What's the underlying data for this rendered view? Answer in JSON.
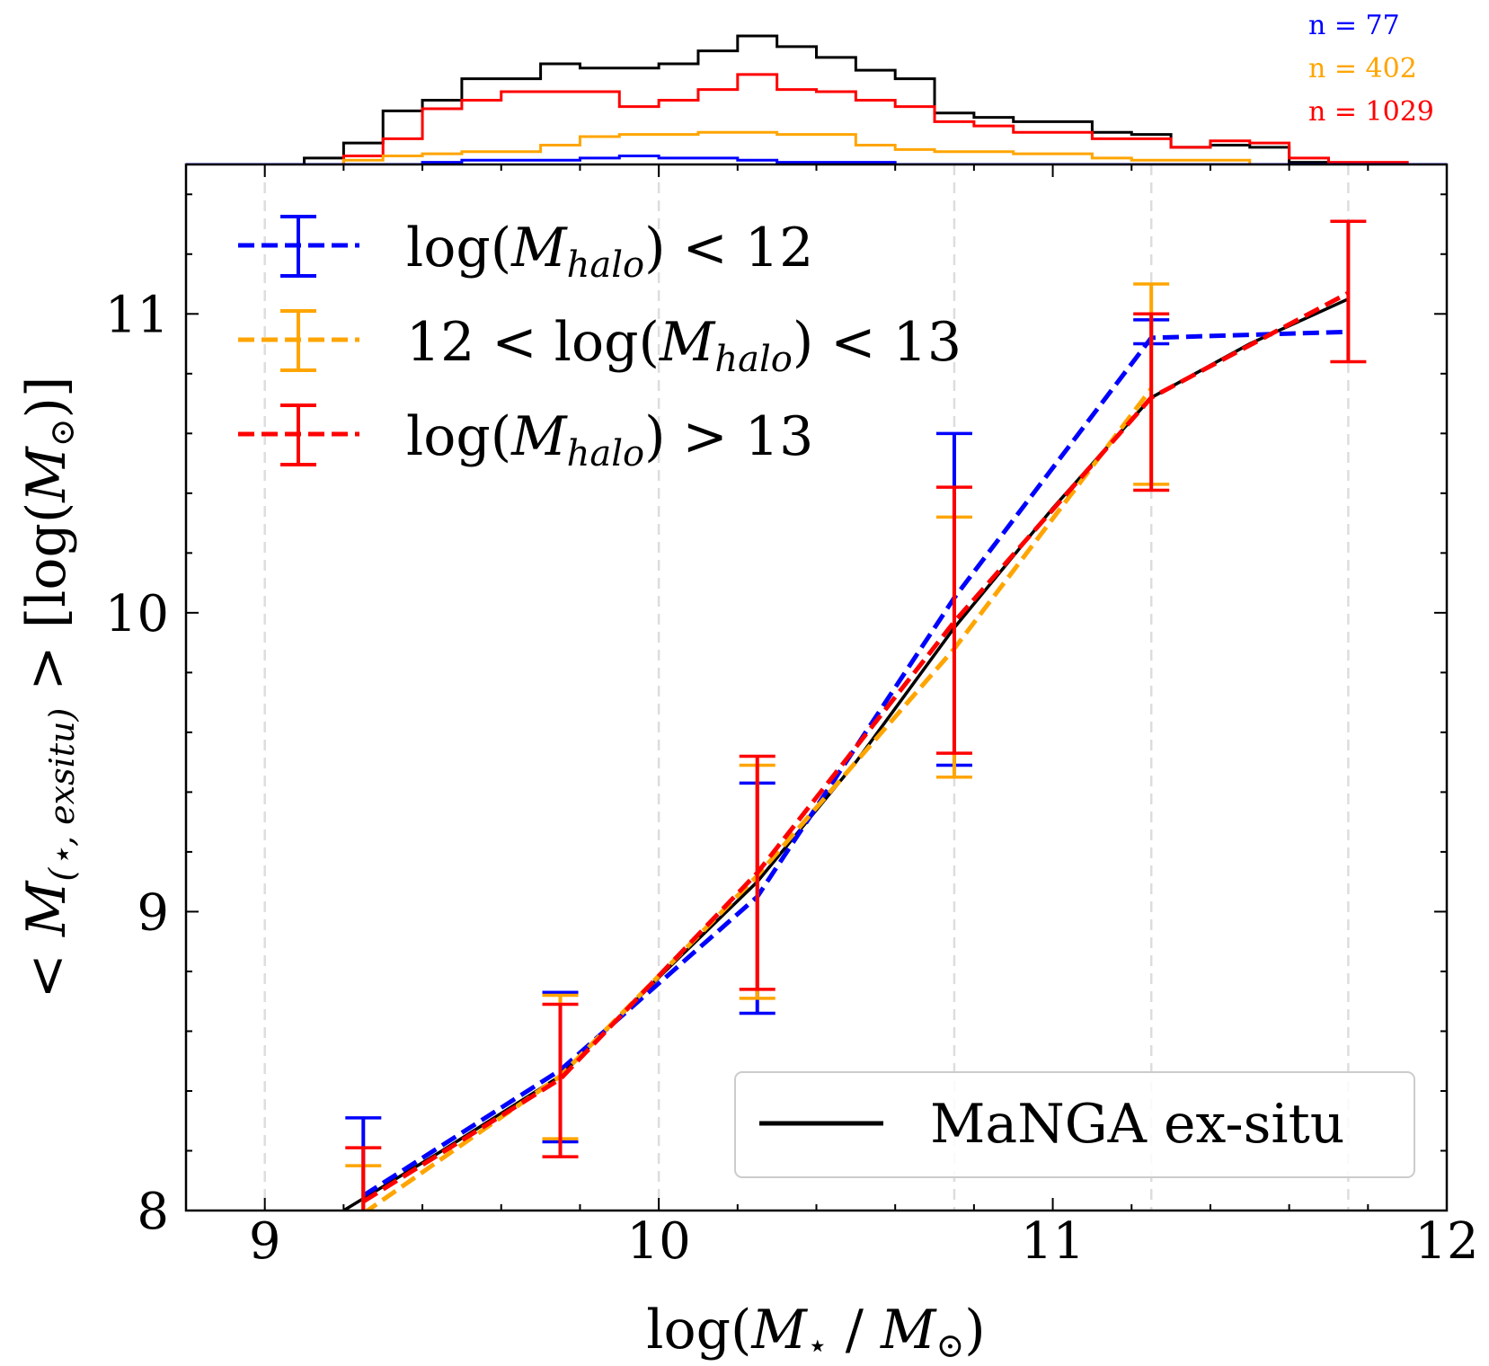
{
  "chart_data": {
    "type": "line",
    "xlabel_parts": {
      "pre": "log(",
      "m1": "M",
      "m1sub": "⋆",
      "slash": " / ",
      "m2": "M",
      "m2sub": "⊙",
      "post": ")"
    },
    "ylabel_parts": {
      "pre": "< ",
      "m": "M",
      "msub": "(⋆, exsitu)",
      "mid": " > [log(",
      "m2": "M",
      "m2sub": "⊙",
      "post": ")]"
    },
    "xlim": [
      8.8,
      12.0
    ],
    "ylim": [
      8.0,
      11.5
    ],
    "xticks": [
      9,
      10,
      11,
      12
    ],
    "xtick_labels": [
      "9",
      "10",
      "11",
      "12"
    ],
    "yticks": [
      8,
      9,
      10,
      11
    ],
    "ytick_labels": [
      "8",
      "9",
      "10",
      "11"
    ],
    "vlines": [
      9.0,
      10.0,
      10.75,
      11.25,
      11.75
    ],
    "colors": {
      "blue": "#0000ff",
      "orange": "#ffa500",
      "red": "#ff0000",
      "black": "#000000"
    },
    "reference": {
      "name": "MaNGA ex-situ",
      "color": "#000000",
      "x": [
        9.2,
        9.45,
        9.75,
        10.0,
        10.25,
        10.5,
        10.75,
        11.0,
        11.25,
        11.5,
        11.75
      ],
      "y": [
        8.0,
        8.2,
        8.45,
        8.78,
        9.1,
        9.5,
        9.95,
        10.35,
        10.72,
        10.9,
        11.05
      ]
    },
    "series": [
      {
        "name": "blue",
        "color": "#0000ff",
        "legend": {
          "pre": "log(",
          "m": "M",
          "sub": "halo",
          "post": ") < 12"
        },
        "x": [
          9.25,
          9.75,
          10.25,
          10.75,
          11.25,
          11.75
        ],
        "y": [
          8.05,
          8.47,
          9.05,
          10.05,
          10.92,
          10.94
        ],
        "err_low": [
          7.95,
          8.23,
          8.66,
          9.49,
          10.9,
          null
        ],
        "err_high": [
          8.31,
          8.73,
          9.43,
          10.6,
          10.98,
          null
        ]
      },
      {
        "name": "orange",
        "color": "#ffa500",
        "legend": {
          "pre": "12 < log(",
          "m": "M",
          "sub": "halo",
          "post": ") < 13"
        },
        "x": [
          9.25,
          9.75,
          10.25,
          10.75,
          11.25
        ],
        "y": [
          7.99,
          8.45,
          9.12,
          9.88,
          10.75
        ],
        "err_low": [
          7.95,
          8.24,
          8.71,
          9.45,
          10.43
        ],
        "err_high": [
          8.15,
          8.72,
          9.49,
          10.32,
          11.1
        ]
      },
      {
        "name": "red",
        "color": "#ff0000",
        "legend": {
          "pre": "log(",
          "m": "M",
          "sub": "halo",
          "post": ") > 13"
        },
        "x": [
          9.25,
          9.75,
          10.25,
          10.75,
          11.25,
          11.75
        ],
        "y": [
          8.03,
          8.44,
          9.13,
          9.97,
          10.72,
          11.07
        ],
        "err_low": [
          7.95,
          8.18,
          8.74,
          9.53,
          10.41,
          10.84
        ],
        "err_high": [
          8.21,
          8.69,
          9.52,
          10.42,
          11.0,
          11.31
        ]
      }
    ],
    "histograms": {
      "bin_edges": [
        8.8,
        9.0,
        9.1,
        9.2,
        9.3,
        9.4,
        9.5,
        9.6,
        9.7,
        9.8,
        9.9,
        10.0,
        10.1,
        10.2,
        10.3,
        10.4,
        10.5,
        10.6,
        10.7,
        10.8,
        10.9,
        11.0,
        11.1,
        11.2,
        11.3,
        11.4,
        11.5,
        11.6,
        11.7,
        11.8,
        11.9,
        12.0
      ],
      "total": {
        "color": "#000000",
        "counts": [
          0,
          0,
          3,
          10,
          25,
          30,
          40,
          40,
          47,
          45,
          45,
          47,
          53,
          60,
          55,
          50,
          44,
          40,
          24,
          22,
          20,
          20,
          15,
          14,
          8,
          9,
          8,
          1,
          0,
          0,
          0
        ]
      },
      "red": {
        "color": "#ff0000",
        "counts": [
          0,
          0,
          0,
          4,
          12,
          26,
          30,
          34,
          34,
          34,
          27,
          30,
          35,
          42,
          35,
          34,
          30,
          27,
          20,
          18,
          15,
          15,
          12,
          12,
          8,
          11,
          10,
          3,
          1,
          1,
          0
        ]
      },
      "orange": {
        "color": "#ffa500",
        "counts": [
          0,
          0,
          0,
          2,
          4,
          5,
          6,
          6,
          9,
          13,
          14,
          14,
          15,
          15,
          14,
          14,
          9,
          7,
          6,
          6,
          5,
          5,
          3,
          2,
          2,
          2,
          0,
          0,
          0,
          0,
          0
        ]
      },
      "blue": {
        "color": "#0000ff",
        "counts": [
          0,
          0,
          0,
          0,
          0,
          1,
          2,
          2,
          2,
          3,
          4,
          3,
          3,
          2,
          1,
          1,
          1,
          0,
          0,
          0,
          0,
          0,
          0,
          0,
          0,
          0,
          0,
          0,
          0,
          0,
          0
        ]
      },
      "max_count": 60
    },
    "counts_labels": [
      {
        "text": "n = 77",
        "color": "#0000ff"
      },
      {
        "text": "n = 402",
        "color": "#ffa500"
      },
      {
        "text": "n = 1029",
        "color": "#ff0000"
      }
    ],
    "legend_position": "top-left",
    "reference_legend_position": "bottom-right"
  }
}
